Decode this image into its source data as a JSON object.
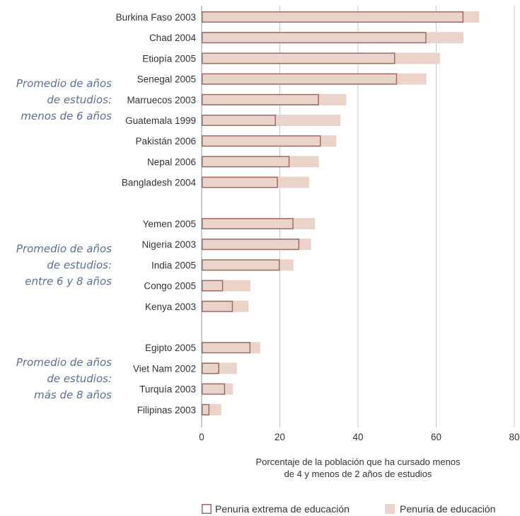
{
  "chart_data": {
    "type": "bar",
    "orientation": "horizontal",
    "xlabel_lines": [
      "Porcentaje de la población que ha cursado menos",
      "de 4 y menos de 2 años de estudios"
    ],
    "xlim": [
      0,
      80
    ],
    "xticks": [
      0,
      20,
      40,
      60,
      80
    ],
    "grid": true,
    "legend_position": "bottom-right",
    "colors": {
      "fill": "#ead4ca",
      "outline": "#a06a66",
      "grid": "#c8c8c8",
      "group_label": "#5b6f98"
    },
    "series": [
      {
        "name": "Penuria extrema de educación",
        "style": "outline"
      },
      {
        "name": "Penuria de educación",
        "style": "fill"
      }
    ],
    "groups": [
      {
        "label_lines": [
          "Promedio de años",
          "de estudios:",
          "menos de 6 años"
        ],
        "rows": [
          {
            "country": "Burkina Faso 2003",
            "extreme": 67,
            "total": 71
          },
          {
            "country": "Chad 2004",
            "extreme": 57.5,
            "total": 67
          },
          {
            "country": "Etiopía 2005",
            "extreme": 49.5,
            "total": 61
          },
          {
            "country": "Senegal 2005",
            "extreme": 50,
            "total": 57.5
          },
          {
            "country": "Marruecos 2003",
            "extreme": 30,
            "total": 37
          },
          {
            "country": "Guatemala 1999",
            "extreme": 19,
            "total": 35.5
          },
          {
            "country": "Pakistán 2006",
            "extreme": 30.5,
            "total": 34.5
          },
          {
            "country": "Nepal 2006",
            "extreme": 22.5,
            "total": 30
          },
          {
            "country": "Bangladesh 2004",
            "extreme": 19.5,
            "total": 27.5
          }
        ]
      },
      {
        "label_lines": [
          "Promedio de años",
          "de estudios:",
          "entre 6 y 8 años"
        ],
        "rows": [
          {
            "country": "Yemen 2005",
            "extreme": 23.5,
            "total": 29
          },
          {
            "country": "Nigeria 2003",
            "extreme": 25,
            "total": 28
          },
          {
            "country": "India 2005",
            "extreme": 20,
            "total": 23.5
          },
          {
            "country": "Congo 2005",
            "extreme": 5.5,
            "total": 12.5
          },
          {
            "country": "Kenya 2003",
            "extreme": 8,
            "total": 12
          }
        ]
      },
      {
        "label_lines": [
          "Promedio de años",
          "de estudios:",
          "más de 8 años"
        ],
        "rows": [
          {
            "country": "Egipto 2005",
            "extreme": 12.5,
            "total": 15
          },
          {
            "country": "Viet Nam 2002",
            "extreme": 4.5,
            "total": 9
          },
          {
            "country": "Turquía 2003",
            "extreme": 6,
            "total": 8
          },
          {
            "country": "Filipinas 2003",
            "extreme": 2,
            "total": 5
          }
        ]
      }
    ]
  }
}
